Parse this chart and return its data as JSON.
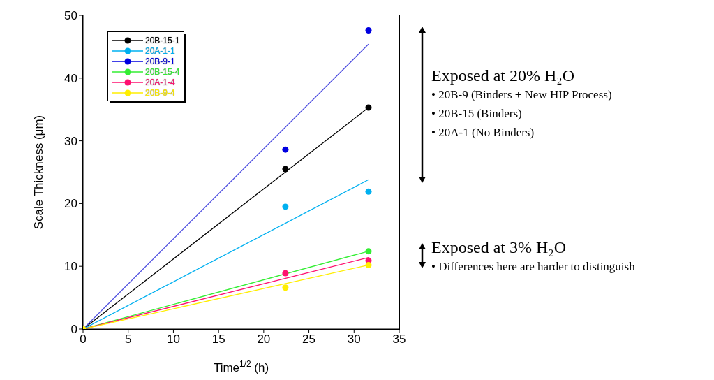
{
  "chart_data": {
    "type": "scatter",
    "xlabel": "Time$^{1/2}$ (h)",
    "ylabel": "Scale Thickness (μm)",
    "xlim": [
      0,
      35
    ],
    "xticks": [
      0,
      5,
      10,
      15,
      20,
      25,
      30,
      35
    ],
    "ylim": [
      0,
      50
    ],
    "yticks": [
      0,
      10,
      20,
      30,
      40,
      50
    ],
    "legend": "top left",
    "marker": "circle",
    "series": [
      {
        "name": "20B-15-1",
        "color": "#000000",
        "x": [
          22.4,
          31.6
        ],
        "values": [
          25.5,
          35.3
        ]
      },
      {
        "name": "20A-1-1",
        "color": "#00b0f0",
        "x": [
          22.4,
          31.6
        ],
        "values": [
          19.5,
          21.9
        ]
      },
      {
        "name": "20B-9-1",
        "color": "#0000e0",
        "x": [
          22.4,
          31.6
        ],
        "values": [
          28.6,
          47.6
        ]
      },
      {
        "name": "20B-15-4",
        "color": "#33ee33",
        "x": [
          31.6
        ],
        "values": [
          12.4
        ]
      },
      {
        "name": "20A-1-4",
        "color": "#ff1070",
        "x": [
          22.4,
          31.6
        ],
        "values": [
          8.9,
          10.9
        ]
      },
      {
        "name": "20B-9-4",
        "color": "#ffee00",
        "x": [
          0,
          22.4,
          31.6
        ],
        "values": [
          0,
          6.6,
          10.2
        ]
      },
      {
        "type": "line",
        "color": "#000000",
        "x": [
          0,
          31.6
        ],
        "values": [
          0,
          35.3
        ],
        "marker": "none"
      },
      {
        "type": "line",
        "color": "#00b0f0",
        "x": [
          0,
          31.6
        ],
        "values": [
          0,
          23.8
        ],
        "marker": "none"
      },
      {
        "type": "line",
        "color": "#5050e0",
        "x": [
          0,
          31.6
        ],
        "values": [
          0,
          45.4
        ],
        "marker": "none"
      },
      {
        "type": "line",
        "color": "#33ee33",
        "x": [
          0,
          31.6
        ],
        "values": [
          0,
          12.4
        ],
        "marker": "none"
      },
      {
        "type": "line",
        "color": "#ff1070",
        "x": [
          0,
          31.6
        ],
        "values": [
          0,
          11.4
        ],
        "marker": "none"
      },
      {
        "type": "line",
        "color": "#ffee00",
        "x": [
          0,
          31.6
        ],
        "values": [
          0,
          10.2
        ],
        "marker": "none"
      }
    ],
    "annotations": [
      "Exposed at 20% H₂O",
      "• 20B-9 (Binders + New HIP Process)",
      "• 20B-15 (Binders)",
      "• 20A-1 (No Binders)",
      "Exposed at 3% H₂O",
      "• Differences here are harder to distinguish"
    ]
  }
}
